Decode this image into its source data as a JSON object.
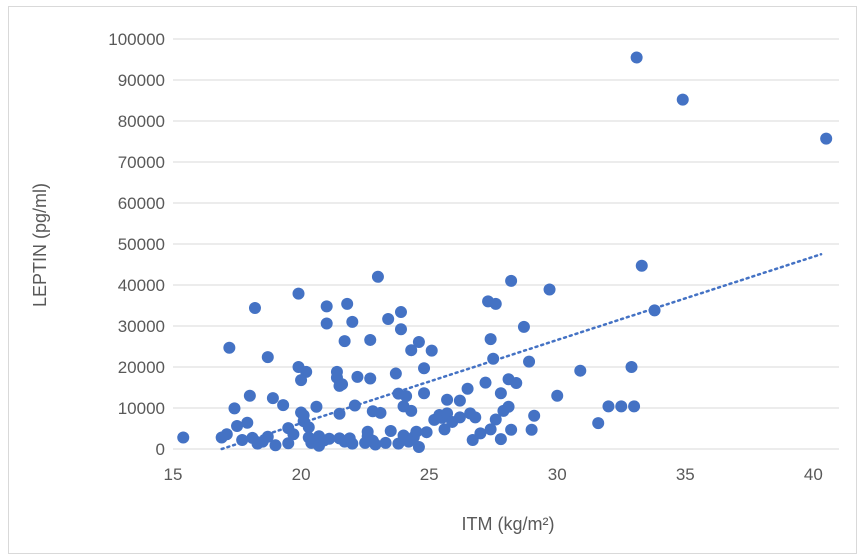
{
  "chart_data": {
    "type": "scatter",
    "title": "",
    "xlabel": "ITM (kg/m²)",
    "ylabel": "LEPTIN (pg/ml)",
    "xlim": [
      15,
      41
    ],
    "ylim": [
      0,
      100000
    ],
    "xticks": [
      15,
      20,
      25,
      30,
      35,
      40
    ],
    "yticks": [
      0,
      10000,
      20000,
      30000,
      40000,
      50000,
      60000,
      70000,
      80000,
      90000,
      100000
    ],
    "grid": "horizontal",
    "marker_color": "#4472c4",
    "trendline": {
      "type": "linear",
      "style": "dotted",
      "x_start": 16.9,
      "y_start": 0,
      "x_end": 40.3,
      "y_end": 47500
    },
    "series": [
      {
        "points": [
          [
            15.4,
            2800
          ],
          [
            16.9,
            2800
          ],
          [
            17.1,
            3600
          ],
          [
            17.2,
            24700
          ],
          [
            17.4,
            9900
          ],
          [
            17.5,
            5600
          ],
          [
            17.7,
            2200
          ],
          [
            17.9,
            6400
          ],
          [
            18.0,
            13000
          ],
          [
            18.1,
            2700
          ],
          [
            18.2,
            34400
          ],
          [
            18.3,
            1300
          ],
          [
            18.5,
            1800
          ],
          [
            18.7,
            3000
          ],
          [
            18.7,
            22400
          ],
          [
            18.9,
            12400
          ],
          [
            19.0,
            900
          ],
          [
            19.3,
            10700
          ],
          [
            19.5,
            5100
          ],
          [
            19.5,
            1400
          ],
          [
            19.7,
            3600
          ],
          [
            19.9,
            20000
          ],
          [
            19.9,
            37900
          ],
          [
            20.0,
            8900
          ],
          [
            20.0,
            16800
          ],
          [
            20.1,
            8200
          ],
          [
            20.1,
            6800
          ],
          [
            20.2,
            18800
          ],
          [
            20.3,
            5300
          ],
          [
            20.3,
            2800
          ],
          [
            20.4,
            1500
          ],
          [
            20.6,
            10300
          ],
          [
            20.7,
            3100
          ],
          [
            20.7,
            800
          ],
          [
            20.9,
            2100
          ],
          [
            21.0,
            34800
          ],
          [
            21.0,
            30600
          ],
          [
            21.1,
            2500
          ],
          [
            21.4,
            18800
          ],
          [
            21.4,
            17400
          ],
          [
            21.5,
            15400
          ],
          [
            21.5,
            8600
          ],
          [
            21.5,
            2600
          ],
          [
            21.6,
            15800
          ],
          [
            21.7,
            1800
          ],
          [
            21.7,
            26300
          ],
          [
            21.8,
            35400
          ],
          [
            21.9,
            2600
          ],
          [
            22.0,
            31000
          ],
          [
            22.0,
            1300
          ],
          [
            22.1,
            10600
          ],
          [
            22.2,
            17600
          ],
          [
            22.5,
            1500
          ],
          [
            22.6,
            3100
          ],
          [
            22.6,
            4200
          ],
          [
            22.7,
            26600
          ],
          [
            22.7,
            17200
          ],
          [
            22.8,
            9200
          ],
          [
            22.8,
            2000
          ],
          [
            22.9,
            1100
          ],
          [
            23.0,
            42000
          ],
          [
            23.1,
            8800
          ],
          [
            23.3,
            1500
          ],
          [
            23.4,
            31700
          ],
          [
            23.5,
            4400
          ],
          [
            23.7,
            18400
          ],
          [
            23.8,
            13500
          ],
          [
            23.8,
            1300
          ],
          [
            23.9,
            29200
          ],
          [
            23.9,
            33400
          ],
          [
            24.0,
            3300
          ],
          [
            24.0,
            10400
          ],
          [
            24.1,
            12900
          ],
          [
            24.2,
            1800
          ],
          [
            24.3,
            24100
          ],
          [
            24.3,
            9300
          ],
          [
            24.4,
            2900
          ],
          [
            24.5,
            4200
          ],
          [
            24.6,
            500
          ],
          [
            24.6,
            26100
          ],
          [
            24.8,
            13600
          ],
          [
            24.8,
            19700
          ],
          [
            24.9,
            4100
          ],
          [
            25.1,
            24000
          ],
          [
            25.2,
            7100
          ],
          [
            25.4,
            8300
          ],
          [
            25.5,
            7600
          ],
          [
            25.6,
            4800
          ],
          [
            25.7,
            12000
          ],
          [
            25.7,
            8700
          ],
          [
            25.9,
            6600
          ],
          [
            26.2,
            7700
          ],
          [
            26.2,
            11800
          ],
          [
            26.5,
            14700
          ],
          [
            26.6,
            8700
          ],
          [
            26.7,
            2200
          ],
          [
            26.8,
            7700
          ],
          [
            27.0,
            3800
          ],
          [
            27.2,
            16200
          ],
          [
            27.3,
            36000
          ],
          [
            27.4,
            26800
          ],
          [
            27.4,
            4800
          ],
          [
            27.5,
            22000
          ],
          [
            27.6,
            35400
          ],
          [
            27.6,
            7200
          ],
          [
            27.8,
            13600
          ],
          [
            27.8,
            2400
          ],
          [
            27.9,
            9300
          ],
          [
            28.1,
            17000
          ],
          [
            28.1,
            10300
          ],
          [
            28.2,
            41000
          ],
          [
            28.2,
            4700
          ],
          [
            28.4,
            16100
          ],
          [
            28.7,
            29800
          ],
          [
            28.9,
            21300
          ],
          [
            29.0,
            4700
          ],
          [
            29.1,
            8100
          ],
          [
            29.7,
            38900
          ],
          [
            30.0,
            13000
          ],
          [
            30.9,
            19100
          ],
          [
            31.6,
            6300
          ],
          [
            32.0,
            10400
          ],
          [
            32.5,
            10400
          ],
          [
            32.9,
            20000
          ],
          [
            33.0,
            10400
          ],
          [
            33.1,
            95500
          ],
          [
            33.3,
            44700
          ],
          [
            33.8,
            33800
          ],
          [
            34.9,
            85200
          ],
          [
            40.5,
            75700
          ]
        ]
      }
    ]
  }
}
